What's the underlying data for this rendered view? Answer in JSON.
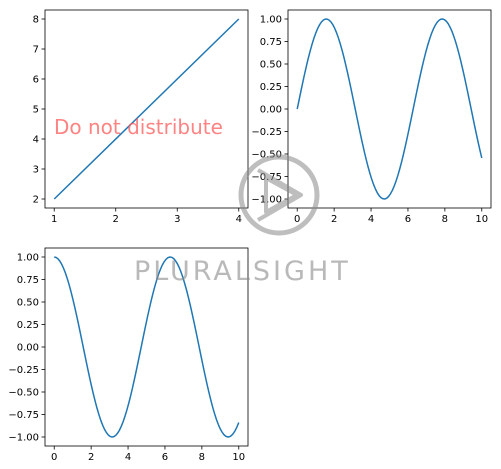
{
  "figure": {
    "watermark_text": "Do not distribute",
    "brand_text": "PLURALSIGHT",
    "brand_logo_icon": "play-circle-logo-icon",
    "colors": {
      "line": "#1f77b4",
      "watermark": "#ff5a5a",
      "brand": "#8a8a8a"
    }
  },
  "chart_data": [
    {
      "type": "line",
      "x": [
        1,
        4
      ],
      "y": [
        2,
        8
      ],
      "xlim": [
        0.85,
        4.15
      ],
      "ylim": [
        1.7,
        8.3
      ],
      "xticks": [
        1,
        2,
        3,
        4
      ],
      "xtick_labels": [
        "1",
        "2",
        "3",
        "4"
      ],
      "yticks": [
        2,
        3,
        4,
        5,
        6,
        7,
        8
      ],
      "ytick_labels": [
        "2",
        "3",
        "4",
        "5",
        "6",
        "7",
        "8"
      ],
      "series": [
        {
          "function": "linear",
          "color": "#1f77b4"
        }
      ]
    },
    {
      "type": "line",
      "x_range": [
        0,
        10
      ],
      "samples": 100,
      "xlim": [
        -0.5,
        10.5
      ],
      "ylim": [
        -1.1,
        1.1
      ],
      "xticks": [
        0,
        2,
        4,
        6,
        8,
        10
      ],
      "xtick_labels": [
        "0",
        "2",
        "4",
        "6",
        "8",
        "10"
      ],
      "yticks": [
        1.0,
        0.75,
        0.5,
        0.25,
        0.0,
        -0.25,
        -0.5,
        -0.75,
        -1.0
      ],
      "ytick_labels": [
        "1.00",
        "0.75",
        "0.50",
        "0.25",
        "0.00",
        "−0.25",
        "−0.50",
        "−0.75",
        "−1.00"
      ],
      "series": [
        {
          "function": "sin",
          "color": "#1f77b4"
        }
      ]
    },
    {
      "type": "line",
      "x_range": [
        0,
        10
      ],
      "samples": 100,
      "xlim": [
        -0.5,
        10.5
      ],
      "ylim": [
        -1.1,
        1.1
      ],
      "xticks": [
        0,
        2,
        4,
        6,
        8,
        10
      ],
      "xtick_labels": [
        "0",
        "2",
        "4",
        "6",
        "8",
        "10"
      ],
      "yticks": [
        1.0,
        0.75,
        0.5,
        0.25,
        0.0,
        -0.25,
        -0.5,
        -0.75,
        -1.0
      ],
      "ytick_labels": [
        "1.00",
        "0.75",
        "0.50",
        "0.25",
        "0.00",
        "−0.25",
        "−0.50",
        "−0.75",
        "−1.00"
      ],
      "series": [
        {
          "function": "cos",
          "color": "#1f77b4"
        }
      ]
    }
  ]
}
